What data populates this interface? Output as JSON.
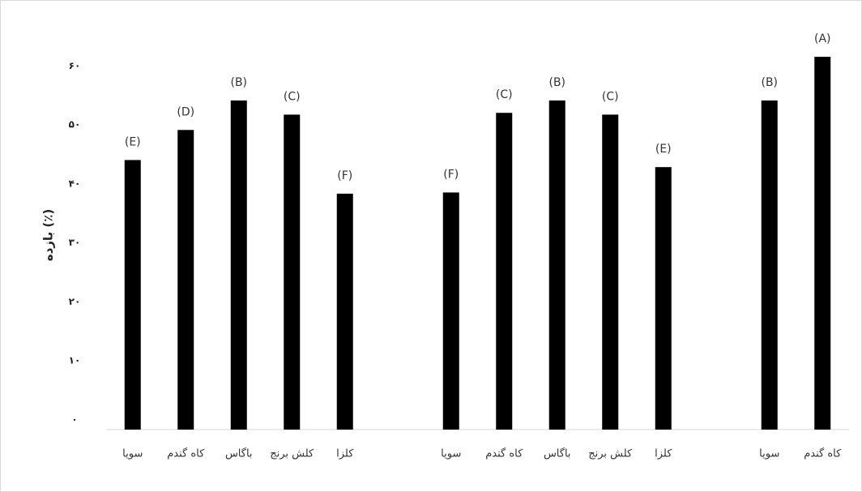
{
  "chart_data": {
    "type": "bar",
    "y_label": "بازده (٪)",
    "categories": [
      "سویا",
      "کاه گندم",
      "باگاس",
      "کلش برنج",
      "کلزا",
      null,
      "سویا",
      "کاه گندم",
      "باگاس",
      "کلش برنج",
      "کلزا",
      null,
      "سویا",
      "کاه گندم"
    ],
    "values": [
      45.7,
      50.8,
      55.8,
      53.4,
      40.0,
      null,
      40.2,
      53.7,
      55.8,
      53.4,
      44.5,
      null,
      55.8,
      63.2
    ],
    "letters": [
      "(E)",
      "(D)",
      "(B)",
      "(C)",
      "(F)",
      null,
      "(F)",
      "(C)",
      "(B)",
      "(C)",
      "(E)",
      null,
      "(B)",
      "(A)"
    ],
    "color": "#000000",
    "ylim": [
      0,
      65
    ],
    "yticks": [
      {
        "value": 0,
        "label": "۰"
      },
      {
        "value": 10,
        "label": "۱۰"
      },
      {
        "value": 20,
        "label": "۲۰"
      },
      {
        "value": 30,
        "label": "۳۰"
      },
      {
        "value": 40,
        "label": "۴۰"
      },
      {
        "value": 50,
        "label": "۵۰"
      },
      {
        "value": 60,
        "label": "۶۰"
      }
    ],
    "grid": false
  }
}
